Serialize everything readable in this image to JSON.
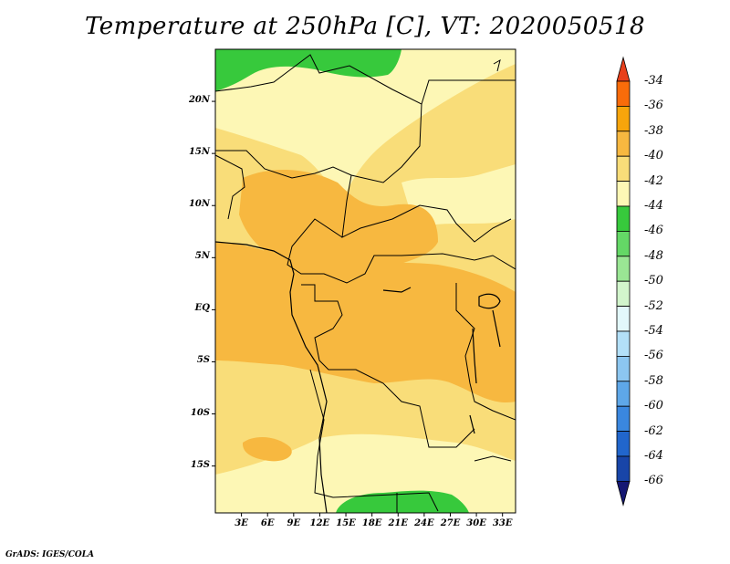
{
  "title": "Temperature at 250hPa [C], VT: 2020050518",
  "credit": "GrADS: IGES/COLA",
  "chart_data": {
    "type": "heatmap",
    "title": "Temperature at 250hPa [C], VT: 2020050518",
    "lon_ticks": [
      "3E",
      "6E",
      "9E",
      "12E",
      "15E",
      "18E",
      "21E",
      "24E",
      "27E",
      "30E",
      "33E"
    ],
    "lat_ticks": [
      "20N",
      "15N",
      "10N",
      "5N",
      "EQ",
      "5S",
      "10S",
      "15S"
    ],
    "lon_range": [
      0,
      34.5
    ],
    "lat_range": [
      -19.5,
      25
    ],
    "colorbar_labels": [
      "-34",
      "-36",
      "-38",
      "-40",
      "-42",
      "-44",
      "-46",
      "-48",
      "-50",
      "-52",
      "-54",
      "-56",
      "-58",
      "-60",
      "-62",
      "-64",
      "-66"
    ],
    "colorbar_colors": [
      "#e8401c",
      "#f96c0a",
      "#f7a50b",
      "#f7b840",
      "#f9dd79",
      "#fdf7b5",
      "#37c93c",
      "#64d866",
      "#9ae694",
      "#d2f5cc",
      "#e2f8fb",
      "#b3e0f8",
      "#8cc6f0",
      "#5ea7e8",
      "#3a87df",
      "#2166cc",
      "#1845a8",
      "#151873"
    ],
    "colors": {
      "c_m38": "#f7b840",
      "c_m40": "#f9dd79",
      "c_m42": "#fdf7b5",
      "c_m44": "#37c93c"
    }
  }
}
